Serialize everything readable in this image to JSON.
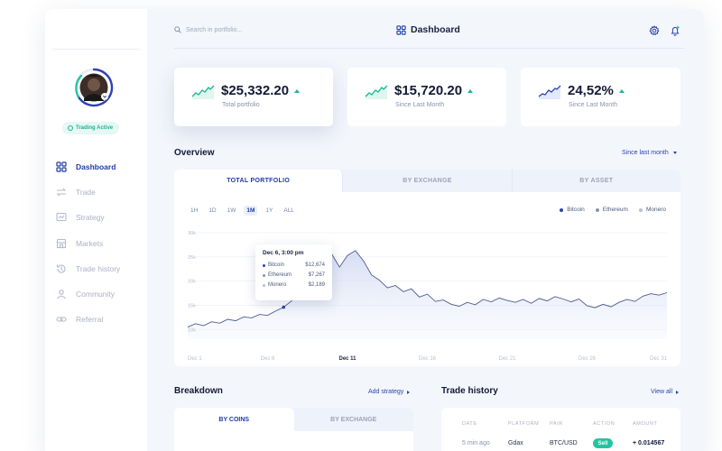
{
  "app": {
    "title": "Dashboard"
  },
  "search": {
    "placeholder": "Search in portfolio..."
  },
  "sidebar": {
    "status": "Trading Active",
    "items": [
      {
        "label": "Dashboard",
        "icon": "grid-icon",
        "active": true
      },
      {
        "label": "Trade",
        "icon": "trade-icon"
      },
      {
        "label": "Strategy",
        "icon": "strategy-icon"
      },
      {
        "label": "Markets",
        "icon": "markets-icon"
      },
      {
        "label": "Trade history",
        "icon": "history-icon"
      },
      {
        "label": "Community",
        "icon": "community-icon"
      },
      {
        "label": "Referral",
        "icon": "referral-icon"
      }
    ]
  },
  "stats": [
    {
      "value": "$25,332.20",
      "label": "Total portfolio",
      "trend": "up"
    },
    {
      "value": "$15,720.20",
      "label": "Since Last Month",
      "trend": "up"
    },
    {
      "value": "24,52%",
      "label": "Since Last Month",
      "trend": "up"
    }
  ],
  "overview": {
    "title": "Overview",
    "period": "Since last month",
    "tabs": [
      "TOTAL PORTFOLIO",
      "BY EXCHANGE",
      "BY ASSET"
    ],
    "ranges": [
      "1H",
      "1D",
      "1W",
      "1M",
      "1Y",
      "ALL"
    ],
    "active_range": "1M",
    "legend": [
      {
        "name": "Bitcoin",
        "color": "#2c44b0"
      },
      {
        "name": "Ethereum",
        "color": "#8a93aa"
      },
      {
        "name": "Monero",
        "color": "#b9c0d3"
      }
    ],
    "tooltip": {
      "title": "Dec 6, 3:00 pm",
      "rows": [
        {
          "name": "Bitcoin",
          "value": "$12,674",
          "color": "#2c44b0"
        },
        {
          "name": "Ethereum",
          "value": "$7,267",
          "color": "#8a93aa"
        },
        {
          "name": "Monero",
          "value": "$2,189",
          "color": "#b9c0d3"
        }
      ]
    }
  },
  "chart_data": {
    "type": "area",
    "y_ticks": [
      "30k",
      "25k",
      "20k",
      "15k",
      "10k"
    ],
    "ylim": [
      8000,
      30000
    ],
    "x_ticks": [
      "Dec 1",
      "Dec 6",
      "Dec 11",
      "Dec 16",
      "Dec 21",
      "Dec 26",
      "Dec 31"
    ],
    "active_x_tick": "Dec 11",
    "grid": true,
    "series": [
      {
        "x": [
          1,
          1.5,
          2,
          2.5,
          3,
          3.5,
          4,
          4.5,
          5,
          5.5,
          6,
          6.5,
          7,
          7.5,
          8,
          8.5,
          9,
          9.5,
          10,
          10.5,
          11,
          11.5,
          12,
          12.5,
          13,
          13.5,
          14,
          14.5,
          15,
          15.5,
          16,
          16.5,
          17,
          17.5,
          18,
          18.5,
          19,
          19.5,
          20,
          20.5,
          21,
          21.5,
          22,
          22.5,
          23,
          23.5,
          24,
          24.5,
          25,
          25.5,
          26,
          26.5,
          27,
          27.5,
          28,
          28.5,
          29,
          29.5,
          30,
          30.5,
          31
        ],
        "values": [
          10500,
          11200,
          10800,
          11600,
          11300,
          12100,
          11800,
          12600,
          12400,
          13100,
          12900,
          13800,
          14600,
          15900,
          18000,
          20800,
          24600,
          26900,
          25700,
          22900,
          25300,
          26300,
          24200,
          21300,
          20200,
          18600,
          19100,
          17800,
          18400,
          16700,
          17300,
          15800,
          16100,
          15200,
          14800,
          15600,
          15100,
          16200,
          15700,
          16500,
          16000,
          15600,
          16200,
          15400,
          16400,
          15900,
          16800,
          16300,
          15700,
          16300,
          14900,
          14500,
          15200,
          14700,
          15600,
          16200,
          15800,
          16900,
          17400,
          17100,
          17600
        ]
      }
    ]
  },
  "breakdown": {
    "title": "Breakdown",
    "action": "Add strategy",
    "tabs": [
      "BY COINS",
      "BY EXCHANGE"
    ]
  },
  "trade_history": {
    "title": "Trade history",
    "action": "View all",
    "columns": [
      "DATE",
      "PLATFORM",
      "PAIR",
      "ACTION",
      "AMOUNT"
    ],
    "rows": [
      {
        "date": "5 min ago",
        "platform": "Gdax",
        "pair": "BTC/USD",
        "action": "Sell",
        "amount": "+ 0.014567"
      }
    ]
  },
  "colors": {
    "accent": "#1e3ba8",
    "positive": "#1bb58f",
    "sell": "#25c4a1"
  }
}
